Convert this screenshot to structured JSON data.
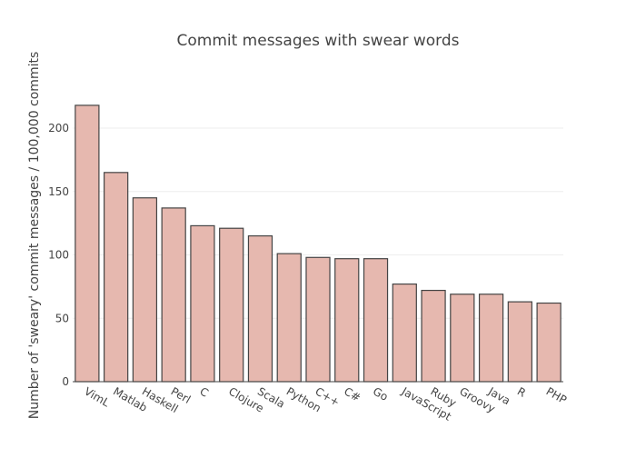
{
  "chart_data": {
    "type": "bar",
    "title": "Commit messages with swear words",
    "xlabel": "",
    "ylabel": "Number of 'sweary' commit messages / 100,000 commits",
    "categories": [
      "VimL",
      "Matlab",
      "Haskell",
      "Perl",
      "C",
      "Clojure",
      "Scala",
      "Python",
      "C++",
      "C#",
      "Go",
      "JavaScript",
      "Ruby",
      "Groovy",
      "Java",
      "R",
      "PHP"
    ],
    "values": [
      218,
      165,
      145,
      137,
      123,
      121,
      115,
      101,
      98,
      97,
      97,
      77,
      72,
      69,
      69,
      63,
      62
    ],
    "ylim": [
      0,
      228
    ],
    "yticks": [
      0,
      50,
      100,
      150,
      200
    ],
    "grid": true,
    "colors": {
      "fill": "#e6b8af",
      "stroke": "#444444",
      "grid": "#eeeeee"
    }
  }
}
